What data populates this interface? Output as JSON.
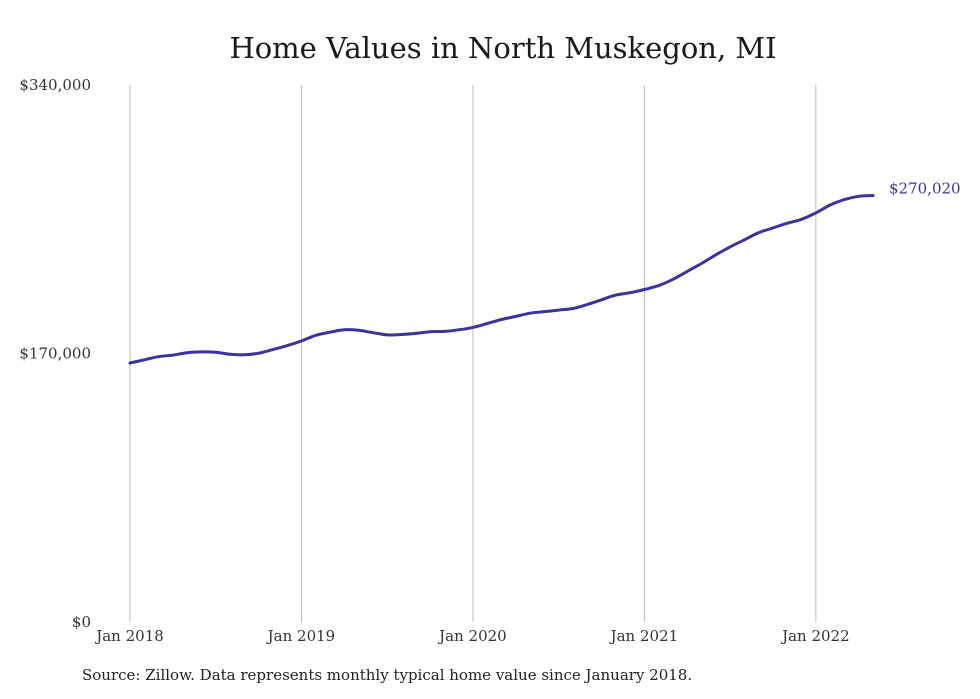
{
  "chart_data": {
    "type": "line",
    "title": "Home Values in North Muskegon, MI",
    "xlabel": "",
    "ylabel": "",
    "ylim": [
      0,
      340000
    ],
    "y_ticks": [
      "$0",
      "$170,000",
      "$340,000"
    ],
    "y_tick_values": [
      0,
      170000,
      340000
    ],
    "x_tick_labels": [
      "Jan 2018",
      "Jan 2019",
      "Jan 2020",
      "Jan 2021",
      "Jan 2022"
    ],
    "x_tick_values": [
      "2018-01",
      "2019-01",
      "2020-01",
      "2021-01",
      "2022-01"
    ],
    "xlim": [
      "2018-01",
      "2022-05"
    ],
    "grid": "vertical",
    "color": "#3a33a0",
    "end_label": "$270,020",
    "series": [
      {
        "x": [
          "2018-01",
          "2018-02",
          "2018-03",
          "2018-04",
          "2018-05",
          "2018-06",
          "2018-07",
          "2018-08",
          "2018-09",
          "2018-10",
          "2018-11",
          "2018-12",
          "2019-01",
          "2019-02",
          "2019-03",
          "2019-04",
          "2019-05",
          "2019-06",
          "2019-07",
          "2019-08",
          "2019-09",
          "2019-10",
          "2019-11",
          "2019-12",
          "2020-01",
          "2020-02",
          "2020-03",
          "2020-04",
          "2020-05",
          "2020-06",
          "2020-07",
          "2020-08",
          "2020-09",
          "2020-10",
          "2020-11",
          "2020-12",
          "2021-01",
          "2021-02",
          "2021-03",
          "2021-04",
          "2021-05",
          "2021-06",
          "2021-07",
          "2021-08",
          "2021-09",
          "2021-10",
          "2021-11",
          "2021-12",
          "2022-01",
          "2022-02",
          "2022-03",
          "2022-04",
          "2022-05"
        ],
        "values": [
          164000,
          166000,
          168000,
          169000,
          170500,
          171000,
          170800,
          169500,
          169200,
          170200,
          172500,
          175000,
          178000,
          181500,
          183500,
          185000,
          184700,
          183200,
          181800,
          182000,
          182700,
          183800,
          184000,
          185000,
          186500,
          189000,
          191500,
          193500,
          195500,
          196500,
          197500,
          198500,
          201000,
          204000,
          207000,
          208500,
          210500,
          213000,
          217000,
          222000,
          227000,
          232500,
          237500,
          242000,
          246500,
          249500,
          252500,
          255000,
          259000,
          264000,
          267500,
          269500,
          270020
        ]
      }
    ]
  },
  "footer": {
    "source": "Source: Zillow. Data represents monthly typical home value since January 2018."
  }
}
